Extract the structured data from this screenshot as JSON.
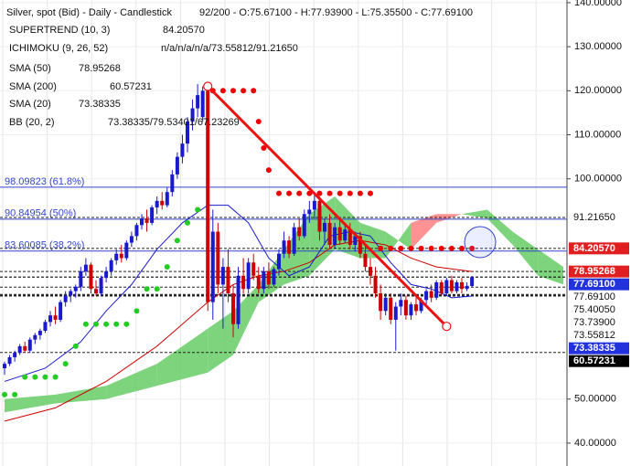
{
  "chart_data": {
    "type": "candlestick",
    "info": {
      "title": "Silver, spot (Bid) - Daily - Candlestick",
      "ohlc": "92/200 - O:75.67100 - H:77.93900 - L:75.35500 - C:77.69100",
      "rows": [
        {
          "label": "SUPERTREND (10, 3)",
          "value": "84.20570"
        },
        {
          "label": "ICHIMOKU (9, 26, 52)",
          "value": "n/a/n/a/n/a/73.55812/91.21650"
        },
        {
          "label": "SMA (50)",
          "value": "78.95268"
        },
        {
          "label": "SMA (200)",
          "value": "60.57231"
        },
        {
          "label": "SMA (20)",
          "value": "73.38335"
        },
        {
          "label": "BB (20, 2)",
          "value": "73.38335/79.53401/67.23269"
        }
      ]
    },
    "xlim": [
      -0.9,
      110.7
    ],
    "ylim": [
      34.8,
      140.6
    ],
    "yticks": [
      {
        "value": 140,
        "label": "140.00000"
      },
      {
        "value": 130,
        "label": "130.00000"
      },
      {
        "value": 120,
        "label": "120.00000"
      },
      {
        "value": 110,
        "label": "110.00000"
      },
      {
        "value": 100,
        "label": "100.00000"
      },
      {
        "value": 50,
        "label": "50.00000"
      },
      {
        "value": 40,
        "label": "40.00000"
      }
    ],
    "grid": true,
    "up_color": "#1a1acc",
    "down_color": "#cc0000",
    "candles": [
      [
        57,
        58.5,
        55.5,
        58
      ],
      [
        58,
        60,
        57.5,
        59.5
      ],
      [
        59.5,
        61,
        58.5,
        60.5
      ],
      [
        60.5,
        62.5,
        60,
        62
      ],
      [
        62,
        63,
        60.5,
        61
      ],
      [
        61,
        64,
        60.5,
        63.5
      ],
      [
        63.5,
        65,
        62.5,
        64.5
      ],
      [
        64.5,
        66,
        63.5,
        65.5
      ],
      [
        65.5,
        68,
        65,
        67.5
      ],
      [
        67.5,
        70,
        66.5,
        69
      ],
      [
        69,
        71,
        67,
        68
      ],
      [
        68,
        72.5,
        67.5,
        72
      ],
      [
        72,
        74.5,
        71,
        73.5
      ],
      [
        73.5,
        75,
        72,
        74.5
      ],
      [
        74.5,
        76,
        73,
        75.5
      ],
      [
        75.5,
        80,
        74.5,
        79
      ],
      [
        79,
        82,
        78,
        80.5
      ],
      [
        80.5,
        81,
        74,
        75
      ],
      [
        75,
        77,
        73.5,
        74
      ],
      [
        74,
        78,
        73.5,
        77.5
      ],
      [
        77.5,
        80,
        76.5,
        79
      ],
      [
        79,
        82,
        78,
        81.5
      ],
      [
        81.5,
        84,
        80.5,
        83
      ],
      [
        83,
        85,
        81,
        82
      ],
      [
        82,
        86,
        81.5,
        85.5
      ],
      [
        85.5,
        88,
        84.5,
        87
      ],
      [
        87,
        90,
        86,
        89.5
      ],
      [
        89.5,
        92,
        88.5,
        91
      ],
      [
        91,
        93,
        88,
        90
      ],
      [
        90,
        94,
        89.5,
        93.5
      ],
      [
        93.5,
        96,
        92,
        95
      ],
      [
        95,
        97,
        93,
        94
      ],
      [
        94,
        98,
        93.5,
        97
      ],
      [
        97,
        102,
        96,
        101
      ],
      [
        101,
        106,
        100,
        105
      ],
      [
        105,
        110,
        103.5,
        108
      ],
      [
        108,
        114,
        106,
        113
      ],
      [
        113,
        118,
        111,
        116
      ],
      [
        116,
        121.5,
        114,
        119
      ],
      [
        114,
        121,
        113,
        120
      ],
      [
        120,
        121,
        70,
        72
      ],
      [
        72,
        93,
        68,
        88
      ],
      [
        88,
        90,
        74,
        76
      ],
      [
        76,
        82,
        66,
        80
      ],
      [
        80,
        84,
        72,
        74
      ],
      [
        74,
        76,
        64,
        67
      ],
      [
        67,
        80,
        66,
        78
      ],
      [
        78,
        82,
        74,
        75
      ],
      [
        75,
        82,
        74,
        81
      ],
      [
        81,
        83,
        77,
        78
      ],
      [
        78,
        80,
        74,
        75
      ],
      [
        75,
        80,
        74,
        79
      ],
      [
        79,
        81,
        75,
        76
      ],
      [
        76,
        80,
        75.5,
        79.5
      ],
      [
        79.5,
        84,
        78,
        83
      ],
      [
        83,
        88,
        82,
        86
      ],
      [
        86,
        87,
        82,
        83
      ],
      [
        83,
        90,
        82.5,
        89
      ],
      [
        89,
        91,
        86,
        87
      ],
      [
        87,
        93,
        86.5,
        92
      ],
      [
        92,
        95,
        90,
        93
      ],
      [
        93,
        97,
        91,
        95
      ],
      [
        95,
        96,
        86,
        88
      ],
      [
        88,
        91,
        85,
        90
      ],
      [
        90,
        92,
        84,
        85
      ],
      [
        85,
        90,
        84,
        89
      ],
      [
        89,
        91,
        85,
        86
      ],
      [
        86,
        90,
        85.5,
        88.5
      ],
      [
        88.5,
        90,
        84,
        85
      ],
      [
        85,
        88,
        83.5,
        87
      ],
      [
        87,
        88,
        82,
        83
      ],
      [
        83,
        85,
        79,
        80
      ],
      [
        80,
        82,
        76,
        78
      ],
      [
        78,
        80,
        73,
        74
      ],
      [
        74,
        76,
        68,
        70
      ],
      [
        70,
        74,
        69,
        73
      ],
      [
        73,
        74,
        67,
        68
      ],
      [
        68,
        72,
        61,
        71
      ],
      [
        71,
        74,
        69,
        72.5
      ],
      [
        72.5,
        73.5,
        68,
        69
      ],
      [
        69,
        72,
        68,
        71.5
      ],
      [
        71.5,
        73,
        69,
        70
      ],
      [
        70,
        73,
        69.5,
        72.5
      ],
      [
        72.5,
        75,
        71,
        74.5
      ],
      [
        74.5,
        76,
        72,
        73
      ],
      [
        73,
        77,
        72.5,
        76.5
      ],
      [
        76.5,
        77,
        73.5,
        74
      ],
      [
        74,
        77.5,
        73.5,
        77
      ],
      [
        77,
        78,
        74,
        74.5
      ],
      [
        74.5,
        77,
        74,
        76.5
      ],
      [
        76.5,
        77.5,
        74,
        75
      ],
      [
        75,
        76.5,
        74.5,
        75.7
      ],
      [
        75.671,
        77.939,
        75.355,
        77.691
      ]
    ],
    "sma20": {
      "color": "#1a1acc",
      "x": [
        0,
        8,
        15,
        20,
        25,
        30,
        35,
        40,
        44,
        48,
        52,
        56,
        60,
        64,
        68,
        72,
        76,
        80,
        84,
        88,
        92
      ],
      "values": [
        54,
        57,
        63,
        70,
        76,
        84,
        90,
        94,
        94,
        90,
        82,
        78,
        80,
        87,
        88,
        87,
        81,
        76,
        75,
        73,
        73.38335
      ]
    },
    "sma50": {
      "color": "#cc0000",
      "x": [
        0,
        10,
        20,
        30,
        40,
        45,
        50,
        55,
        60,
        65,
        70,
        75,
        80,
        85,
        92
      ],
      "values": [
        45,
        48,
        54,
        62,
        72,
        76,
        78,
        79,
        81,
        85,
        86,
        85,
        82,
        80,
        78.95268
      ]
    },
    "cloud": {
      "up_color": "#66cc66",
      "down_color": "#ff8080",
      "x": [
        0,
        10,
        20,
        30,
        40,
        45,
        50,
        55,
        60,
        65,
        70,
        75,
        80,
        85,
        90,
        95,
        100,
        105,
        110
      ],
      "span_a": [
        50,
        51,
        53,
        58,
        66,
        70,
        76,
        84,
        92,
        96,
        90,
        88,
        84,
        90,
        92,
        93,
        88,
        84,
        80
      ],
      "span_b": [
        47,
        49,
        50,
        53,
        56,
        60,
        72,
        76,
        78,
        84,
        82,
        82,
        90,
        92,
        92,
        91,
        85,
        78,
        76
      ]
    },
    "supertrend_support": {
      "color": "#22cc22",
      "x": [
        0,
        2,
        4,
        6,
        8,
        10,
        12,
        14,
        16,
        18,
        20,
        22,
        24,
        26,
        28,
        30,
        32,
        34,
        36,
        38
      ],
      "values": [
        51,
        51,
        55,
        55,
        55,
        55,
        58,
        62,
        67,
        67,
        67,
        67,
        67,
        70,
        75,
        75,
        80,
        86,
        90,
        93
      ]
    },
    "supertrend_resistance": {
      "color": "#ee0000",
      "x": [
        41,
        43,
        45,
        47,
        49,
        50,
        51,
        52,
        54,
        56,
        58,
        60,
        62,
        64,
        66,
        68,
        70,
        72,
        74,
        76,
        78,
        80,
        82,
        84,
        86,
        88,
        90,
        92
      ],
      "values": [
        120,
        120,
        120,
        120,
        120,
        113,
        107,
        102,
        96.7,
        96.7,
        96.7,
        96.7,
        96.7,
        96.7,
        96.7,
        96.7,
        96.7,
        96.7,
        84.2,
        84.2,
        84.2,
        84.2,
        84.2,
        84.2,
        84.2,
        84.2,
        84.2,
        84.2057
      ]
    },
    "trendline": {
      "color": "#ee1111",
      "x": [
        40,
        87
      ],
      "values": [
        121,
        66.5
      ]
    },
    "fib_levels": [
      {
        "value": 98.09823,
        "label": "98.09823 (61.8%)"
      },
      {
        "value": 90.84954,
        "label": "90.84954 (50%)"
      },
      {
        "value": 83.60085,
        "label": "83.60085 (38.2%)"
      }
    ],
    "fib_color": "#3344cc",
    "price_markers": [
      {
        "value": 91.2165,
        "label": "91.21650"
      },
      {
        "value": 84.2057,
        "label": "84.20570",
        "color": "#e02020"
      },
      {
        "value": 78.95268,
        "label": "78.95268",
        "color": "#e02020"
      },
      {
        "value": 77.691,
        "label": "77.69100",
        "color": "#2233dd"
      },
      {
        "value": 77.691,
        "label": "77.69100"
      },
      {
        "value": 75.4005,
        "label": "75.40050"
      },
      {
        "value": 73.739,
        "label": "73.73900"
      },
      {
        "value": 73.55812,
        "label": "73.55812"
      },
      {
        "value": 73.38335,
        "label": "73.38335",
        "color": "#2233dd"
      },
      {
        "value": 60.57231,
        "label": "60.57231",
        "color": "#000000"
      }
    ]
  }
}
